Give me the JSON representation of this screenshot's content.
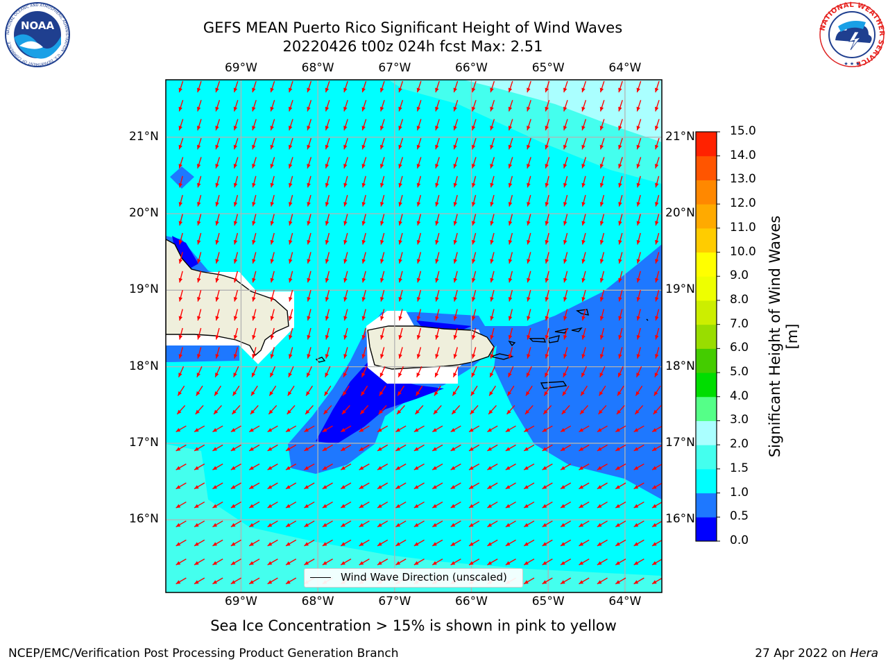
{
  "header": {
    "title_line1": "GEFS MEAN Puerto Rico Significant Height of Wind Waves",
    "title_line2": "20220426 t00z 024h fcst   Max: 2.51"
  },
  "logos": {
    "left": {
      "name": "noaa-logo",
      "text": "NOAA",
      "ring_text": "NATIONAL OCEANIC AND ATMOSPHERIC ADMINISTRATION · U.S. DEPARTMENT OF COMMERCE"
    },
    "right": {
      "name": "nws-logo",
      "ring_text": "NATIONAL WEATHER SERVICE"
    }
  },
  "map": {
    "lon_labels": [
      "69°W",
      "68°W",
      "67°W",
      "66°W",
      "65°W",
      "64°W"
    ],
    "lon_values": [
      -69,
      -68,
      -67,
      -66,
      -65,
      -64
    ],
    "lat_labels": [
      "21°N",
      "20°N",
      "19°N",
      "18°N",
      "17°N",
      "16°N"
    ],
    "lat_values": [
      21,
      20,
      19,
      18,
      17,
      16
    ],
    "extent": {
      "lon": [
        -69.98,
        -63.52
      ],
      "lat": [
        15.05,
        21.75
      ]
    },
    "arrow_color": "#ff0000",
    "legend_label": "Wind Wave Direction (unscaled)"
  },
  "colorbar": {
    "label": "Significant Height of Wind Waves [m]",
    "levels": [
      "0.0",
      "0.5",
      "1.0",
      "1.5",
      "2.0",
      "3.0",
      "4.0",
      "5.0",
      "6.0",
      "7.0",
      "8.0",
      "9.0",
      "10.0",
      "11.0",
      "12.0",
      "13.0",
      "14.0",
      "15.0"
    ],
    "colors": [
      "#0000ff",
      "#1e78ff",
      "#00ffff",
      "#44ffee",
      "#aaffff",
      "#55ff88",
      "#00dd00",
      "#44cc00",
      "#99dd00",
      "#ccee00",
      "#eeff00",
      "#ffff00",
      "#ffcc00",
      "#ffaa00",
      "#ff8800",
      "#ff5500",
      "#ff2200"
    ]
  },
  "notes": {
    "ice_note": "Sea Ice Concentration > 15% is shown in pink to yellow",
    "footer_left": "NCEP/EMC/Verification Post Processing Product Generation Branch",
    "footer_date": "27 Apr 2022 on ",
    "footer_host": "Hera"
  }
}
